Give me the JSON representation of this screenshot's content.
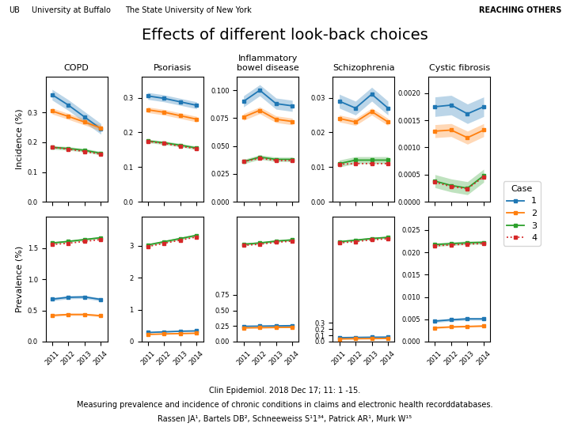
{
  "title": "Effects of different look-back choices",
  "annotations": [
    "UB",
    "University at Buffalo",
    "The State University of New York",
    "REACHING OTHERS",
    "Clin Epidemiol. 2018 Dec 17; 11: 1 -15.",
    "Measuring prevalence and incidence of chronic conditions in claims and electronic health recorddatabases.",
    "Rassen JA¹, Bartels DB², Schneeweiss S¹1³⁴, Patrick AR¹, Murk W¹⁵"
  ],
  "legend_title": "Case",
  "chart_data": [
    {
      "type": "line",
      "title": "COPD",
      "y_label": "Incidence (%)",
      "tick_labels": "y",
      "grid": false,
      "x": [
        2011,
        2012,
        2013,
        2014
      ],
      "xlim": [
        2010.6,
        2014.4
      ],
      "xticks": [
        2011,
        2012,
        2013,
        2014
      ],
      "ylim": [
        0.0,
        0.42
      ],
      "yticks": [
        0.0,
        0.1,
        0.2,
        0.3
      ],
      "series": [
        {
          "name": "1",
          "values": [
            0.36,
            0.325,
            0.285,
            0.245
          ],
          "ci": [
            0.018,
            0.018,
            0.018,
            0.018
          ],
          "line_style": "solid",
          "marker": "square"
        },
        {
          "name": "2",
          "values": [
            0.305,
            0.287,
            0.268,
            0.248
          ],
          "ci": [
            0.01,
            0.01,
            0.01,
            0.01
          ],
          "line_style": "solid",
          "marker": "square"
        },
        {
          "name": "3",
          "values": [
            0.183,
            0.179,
            0.173,
            0.163
          ],
          "ci": [
            0.006,
            0.006,
            0.006,
            0.006
          ],
          "line_style": "solid",
          "marker": "square"
        },
        {
          "name": "4",
          "values": [
            0.183,
            0.177,
            0.169,
            0.16
          ],
          "line_style": "dotted",
          "marker": "square"
        }
      ]
    },
    {
      "type": "line",
      "title": "Psoriasis",
      "tick_labels": "y",
      "grid": false,
      "x": [
        2011,
        2012,
        2013,
        2014
      ],
      "xlim": [
        2010.6,
        2014.4
      ],
      "xticks": [
        2011,
        2012,
        2013,
        2014
      ],
      "ylim": [
        0.0,
        0.36
      ],
      "yticks": [
        0.0,
        0.1,
        0.2,
        0.3
      ],
      "series": [
        {
          "name": "1",
          "values": [
            0.305,
            0.298,
            0.288,
            0.278
          ],
          "ci": [
            0.01,
            0.01,
            0.01,
            0.01
          ],
          "line_style": "solid",
          "marker": "square"
        },
        {
          "name": "2",
          "values": [
            0.265,
            0.258,
            0.248,
            0.238
          ],
          "ci": [
            0.008,
            0.008,
            0.008,
            0.008
          ],
          "line_style": "solid",
          "marker": "square"
        },
        {
          "name": "3",
          "values": [
            0.175,
            0.17,
            0.163,
            0.155
          ],
          "ci": [
            0.005,
            0.005,
            0.005,
            0.005
          ],
          "line_style": "solid",
          "marker": "square"
        },
        {
          "name": "4",
          "values": [
            0.174,
            0.168,
            0.16,
            0.153
          ],
          "line_style": "dotted",
          "marker": "square"
        }
      ]
    },
    {
      "type": "line",
      "title": "Inflammatory\nbowel disease",
      "tick_labels": "y",
      "grid": false,
      "x": [
        2011,
        2012,
        2013,
        2014
      ],
      "xlim": [
        2010.6,
        2014.4
      ],
      "xticks": [
        2011,
        2012,
        2013,
        2014
      ],
      "ylim": [
        0.0,
        0.112
      ],
      "yticks": [
        {
          "value": 0.0,
          "label": "0.000"
        },
        0.025,
        {
          "value": 0.05,
          "label": "0.050"
        },
        0.075,
        {
          "value": 0.1,
          "label": "0.100"
        }
      ],
      "series": [
        {
          "name": "1",
          "values": [
            0.09,
            0.1,
            0.088,
            0.086
          ],
          "ci": [
            0.005,
            0.005,
            0.005,
            0.005
          ],
          "line_style": "solid",
          "marker": "square"
        },
        {
          "name": "2",
          "values": [
            0.076,
            0.082,
            0.074,
            0.072
          ],
          "ci": [
            0.003,
            0.003,
            0.003,
            0.003
          ],
          "line_style": "solid",
          "marker": "square"
        },
        {
          "name": "3",
          "values": [
            0.036,
            0.04,
            0.038,
            0.038
          ],
          "ci": [
            0.002,
            0.002,
            0.002,
            0.002
          ],
          "line_style": "solid",
          "marker": "square"
        },
        {
          "name": "4",
          "values": [
            0.036,
            0.039,
            0.037,
            0.037
          ],
          "line_style": "dotted",
          "marker": "square"
        }
      ]
    },
    {
      "type": "line",
      "title": "Schizophrenia",
      "tick_labels": "y",
      "grid": false,
      "x": [
        2011,
        2012,
        2013,
        2014
      ],
      "xlim": [
        2010.6,
        2014.4
      ],
      "xticks": [
        2011,
        2012,
        2013,
        2014
      ],
      "ylim": [
        0.0,
        0.036
      ],
      "yticks": [
        {
          "value": 0.0,
          "label": "0.00"
        },
        0.01,
        0.02,
        0.03
      ],
      "series": [
        {
          "name": "1",
          "values": [
            0.029,
            0.027,
            0.031,
            0.027
          ],
          "ci": [
            0.002,
            0.002,
            0.002,
            0.002
          ],
          "line_style": "solid",
          "marker": "square"
        },
        {
          "name": "2",
          "values": [
            0.024,
            0.023,
            0.026,
            0.023
          ],
          "ci": [
            0.001,
            0.001,
            0.001,
            0.001
          ],
          "line_style": "solid",
          "marker": "square"
        },
        {
          "name": "3",
          "values": [
            0.011,
            0.012,
            0.012,
            0.012
          ],
          "ci": [
            0.001,
            0.001,
            0.001,
            0.001
          ],
          "line_style": "solid",
          "marker": "square"
        },
        {
          "name": "4",
          "values": [
            0.0108,
            0.011,
            0.011,
            0.011
          ],
          "line_style": "dotted",
          "marker": "square"
        }
      ]
    },
    {
      "type": "line",
      "title": "Cystic fibrosis",
      "tick_labels": "y",
      "grid": false,
      "x": [
        2011,
        2012,
        2013,
        2014
      ],
      "xlim": [
        2010.6,
        2014.4
      ],
      "xticks": [
        2011,
        2012,
        2013,
        2014
      ],
      "ylim": [
        0.0,
        0.0023
      ],
      "yticks": [
        {
          "value": 0.0,
          "label": "0.0000"
        },
        0.0005,
        {
          "value": 0.001,
          "label": "0.0010"
        },
        {
          "value": 0.0015,
          "label": "0.0015"
        },
        {
          "value": 0.002,
          "label": "0.0020"
        }
      ],
      "series": [
        {
          "name": "1",
          "values": [
            0.00175,
            0.00178,
            0.00162,
            0.00175
          ],
          "ci": [
            0.00018,
            0.00018,
            0.00018,
            0.00018
          ],
          "line_style": "solid",
          "marker": "square"
        },
        {
          "name": "2",
          "values": [
            0.0013,
            0.00132,
            0.00118,
            0.00132
          ],
          "ci": [
            0.00012,
            0.00012,
            0.00012,
            0.00012
          ],
          "line_style": "solid",
          "marker": "square"
        },
        {
          "name": "3",
          "values": [
            0.00038,
            0.0003,
            0.00025,
            0.00048
          ],
          "ci": [
            0.00012,
            0.00012,
            0.00012,
            0.00012
          ],
          "line_style": "solid",
          "marker": "square"
        },
        {
          "name": "4",
          "values": [
            0.00036,
            0.00028,
            0.00024,
            0.00046
          ],
          "line_style": "dotted",
          "marker": "square"
        }
      ]
    },
    {
      "type": "line",
      "y_label": "Prevalence (%)",
      "grid": false,
      "x": [
        2011,
        2012,
        2013,
        2014
      ],
      "xlim": [
        2010.6,
        2014.4
      ],
      "xticks": [
        2011,
        2012,
        2013,
        2014
      ],
      "ylim": [
        0.0,
        2.0
      ],
      "yticks": [
        0.0,
        0.5,
        1.0,
        1.5
      ],
      "series": [
        {
          "name": "1",
          "values": [
            0.68,
            0.71,
            0.715,
            0.675
          ],
          "ci": [
            0.025,
            0.025,
            0.025,
            0.025
          ],
          "line_style": "solid",
          "marker": "square"
        },
        {
          "name": "2",
          "values": [
            0.42,
            0.435,
            0.435,
            0.415
          ],
          "ci": [
            0.018,
            0.018,
            0.018,
            0.018
          ],
          "line_style": "solid",
          "marker": "square"
        },
        {
          "name": "3",
          "values": [
            1.58,
            1.605,
            1.635,
            1.665
          ],
          "ci": [
            0.018,
            0.018,
            0.018,
            0.018
          ],
          "line_style": "solid",
          "marker": "square"
        },
        {
          "name": "4",
          "values": [
            1.555,
            1.575,
            1.605,
            1.635
          ],
          "line_style": "dotted",
          "marker": "square"
        }
      ]
    },
    {
      "type": "line",
      "grid": false,
      "x": [
        2011,
        2012,
        2013,
        2014
      ],
      "xlim": [
        2010.6,
        2014.4
      ],
      "xticks": [
        2011,
        2012,
        2013,
        2014
      ],
      "ylim": [
        0,
        3.9
      ],
      "yticks": [
        0,
        1,
        2,
        3
      ],
      "series": [
        {
          "name": "1",
          "values": [
            0.285,
            0.305,
            0.325,
            0.335
          ],
          "ci": [
            0.012,
            0.012,
            0.012,
            0.012
          ],
          "line_style": "solid",
          "marker": "square"
        },
        {
          "name": "2",
          "values": [
            0.225,
            0.24,
            0.252,
            0.262
          ],
          "ci": [
            0.01,
            0.01,
            0.01,
            0.01
          ],
          "line_style": "solid",
          "marker": "square"
        },
        {
          "name": "3",
          "values": [
            3.02,
            3.12,
            3.22,
            3.32
          ],
          "ci": [
            0.04,
            0.04,
            0.04,
            0.04
          ],
          "line_style": "solid",
          "marker": "square"
        },
        {
          "name": "4",
          "values": [
            2.97,
            3.07,
            3.17,
            3.27
          ],
          "line_style": "dotted",
          "marker": "square"
        }
      ]
    },
    {
      "type": "line",
      "grid": false,
      "x": [
        2011,
        2012,
        2013,
        2014
      ],
      "xlim": [
        2010.6,
        2014.4
      ],
      "xticks": [
        2011,
        2012,
        2013,
        2014
      ],
      "ylim": [
        0.0,
        2.0
      ],
      "yticks": [
        {
          "value": 0.0,
          "label": "0.00"
        },
        0.25,
        {
          "value": 0.5,
          "label": "0.50"
        },
        0.75
      ],
      "series": [
        {
          "name": "1",
          "values": [
            0.245,
            0.248,
            0.252,
            0.256
          ],
          "ci": [
            0.006,
            0.006,
            0.006,
            0.006
          ],
          "line_style": "solid",
          "marker": "square"
        },
        {
          "name": "2",
          "values": [
            0.22,
            0.223,
            0.226,
            0.23
          ],
          "ci": [
            0.005,
            0.005,
            0.005,
            0.005
          ],
          "line_style": "solid",
          "marker": "square"
        },
        {
          "name": "3",
          "values": [
            1.56,
            1.58,
            1.61,
            1.63
          ],
          "ci": [
            0.018,
            0.018,
            0.018,
            0.018
          ],
          "line_style": "solid",
          "marker": "square"
        },
        {
          "name": "4",
          "values": [
            1.54,
            1.56,
            1.59,
            1.61
          ],
          "line_style": "dotted",
          "marker": "square"
        }
      ]
    },
    {
      "type": "line",
      "grid": false,
      "x": [
        2011,
        2012,
        2013,
        2014
      ],
      "xlim": [
        2010.6,
        2014.4
      ],
      "xticks": [
        2011,
        2012,
        2013,
        2014
      ],
      "ylim": [
        0.0,
        2.0
      ],
      "yticks": [
        0.0,
        0.1,
        0.2,
        0.3
      ],
      "series": [
        {
          "name": "1",
          "values": [
            0.063,
            0.067,
            0.07,
            0.072
          ],
          "ci": [
            0.003,
            0.003,
            0.003,
            0.003
          ],
          "line_style": "solid",
          "marker": "square"
        },
        {
          "name": "2",
          "values": [
            0.043,
            0.046,
            0.048,
            0.05
          ],
          "ci": [
            0.002,
            0.002,
            0.002,
            0.002
          ],
          "line_style": "solid",
          "marker": "square"
        },
        {
          "name": "3",
          "values": [
            1.6,
            1.625,
            1.652,
            1.67
          ],
          "ci": [
            0.018,
            0.018,
            0.018,
            0.018
          ],
          "line_style": "solid",
          "marker": "square"
        },
        {
          "name": "4",
          "values": [
            1.58,
            1.602,
            1.63,
            1.648
          ],
          "line_style": "dotted",
          "marker": "square"
        }
      ]
    },
    {
      "type": "line",
      "grid": false,
      "x": [
        2011,
        2012,
        2013,
        2014
      ],
      "xlim": [
        2010.6,
        2014.4
      ],
      "xticks": [
        2011,
        2012,
        2013,
        2014
      ],
      "ylim": [
        0.0,
        0.028
      ],
      "yticks": [
        {
          "value": 0.0,
          "label": "0.000"
        },
        0.005,
        {
          "value": 0.01,
          "label": "0.010"
        },
        0.015,
        {
          "value": 0.02,
          "label": "0.020"
        },
        0.025
      ],
      "series": [
        {
          "name": "1",
          "values": [
            0.0046,
            0.0049,
            0.0051,
            0.0051
          ],
          "ci": [
            0.0003,
            0.0003,
            0.0003,
            0.0003
          ],
          "line_style": "solid",
          "marker": "square"
        },
        {
          "name": "2",
          "values": [
            0.0031,
            0.0033,
            0.0034,
            0.0035
          ],
          "ci": [
            0.0002,
            0.0002,
            0.0002,
            0.0002
          ],
          "line_style": "solid",
          "marker": "square"
        },
        {
          "name": "3",
          "values": [
            0.02175,
            0.02195,
            0.02215,
            0.02225
          ],
          "ci": [
            0.0004,
            0.0004,
            0.0004,
            0.0004
          ],
          "line_style": "solid",
          "marker": "square"
        },
        {
          "name": "4",
          "values": [
            0.02148,
            0.02168,
            0.02188,
            0.02198
          ],
          "line_style": "dotted",
          "marker": "square"
        }
      ]
    }
  ]
}
